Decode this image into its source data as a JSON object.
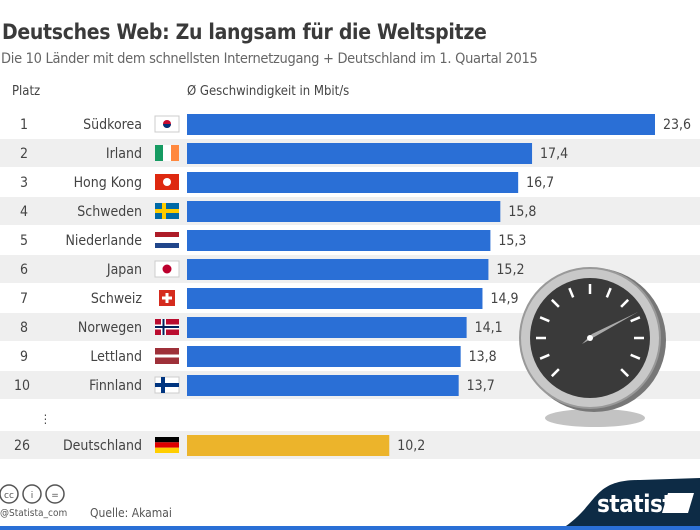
{
  "chart_data": {
    "type": "bar",
    "orientation": "horizontal",
    "title": "Deutsches Web: Zu langsam für die Weltspitze",
    "subtitle": "Die 10 Länder mit dem schnellsten Internetzugang + Deutschland im 1. Quartal 2015",
    "rank_header": "Platz",
    "value_header": "Ø Geschwindigkeit in Mbit/s",
    "ellipsis": "⋮",
    "rows": [
      {
        "rank": "1",
        "country": "Südkorea",
        "flag": "kr",
        "value": 23.6,
        "label": "23,6"
      },
      {
        "rank": "2",
        "country": "Irland",
        "flag": "ie",
        "value": 17.4,
        "label": "17,4"
      },
      {
        "rank": "3",
        "country": "Hong Kong",
        "flag": "hk",
        "value": 16.7,
        "label": "16,7"
      },
      {
        "rank": "4",
        "country": "Schweden",
        "flag": "se",
        "value": 15.8,
        "label": "15,8"
      },
      {
        "rank": "5",
        "country": "Niederlande",
        "flag": "nl",
        "value": 15.3,
        "label": "15,3"
      },
      {
        "rank": "6",
        "country": "Japan",
        "flag": "jp",
        "value": 15.2,
        "label": "15,2"
      },
      {
        "rank": "7",
        "country": "Schweiz",
        "flag": "ch",
        "value": 14.9,
        "label": "14,9"
      },
      {
        "rank": "8",
        "country": "Norwegen",
        "flag": "no",
        "value": 14.1,
        "label": "14,1"
      },
      {
        "rank": "9",
        "country": "Lettland",
        "flag": "lv",
        "value": 13.8,
        "label": "13,8"
      },
      {
        "rank": "10",
        "country": "Finnland",
        "flag": "fi",
        "value": 13.7,
        "label": "13,7"
      },
      {
        "rank": "26",
        "country": "Deutschland",
        "flag": "de",
        "value": 10.2,
        "label": "10,2",
        "highlight": true
      }
    ],
    "xlim": [
      0,
      23.6
    ],
    "colors": {
      "bar": "#2a6fd6",
      "highlight": "#ecb42b",
      "stripe": "#efefef"
    }
  },
  "footer": {
    "source": "Quelle: Akamai",
    "handle": "@Statista_com",
    "brand": "statista",
    "license_icons": [
      "cc-icon",
      "by-icon",
      "nd-icon"
    ]
  }
}
